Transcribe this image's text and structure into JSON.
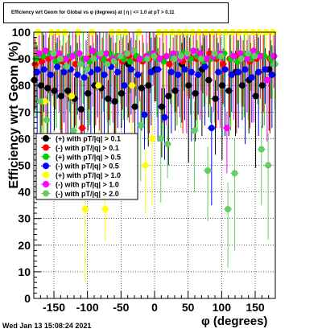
{
  "title": "Efficiency wrt Geom for Global vs φ (degrees) at | η | <= 1.0 at pT > 0.11",
  "timestamp": "Wed Jan 13 15:08:24 2021",
  "chart_data": {
    "type": "scatter",
    "title": "Efficiency wrt Geom for Global vs φ (degrees) at | η | <= 1.0 at pT > 0.11",
    "xlabel": "φ (degrees)",
    "ylabel": "Efficiency wrt Geom (%)",
    "xlim": [
      -180,
      180
    ],
    "ylim": [
      0,
      100
    ],
    "x_ticks": [
      -150,
      -100,
      -50,
      0,
      50,
      100,
      150
    ],
    "y_ticks": [
      0,
      10,
      20,
      30,
      40,
      50,
      60,
      70,
      80,
      90,
      100
    ],
    "grid": true,
    "legend_position": "center-left",
    "series": [
      {
        "name": "(+) with pT/|q| > 0.1",
        "color": "#000000",
        "x": [
          -175,
          -165,
          -155,
          -145,
          -135,
          -125,
          -115,
          -105,
          -95,
          -85,
          -75,
          -65,
          -55,
          -45,
          -35,
          -25,
          -15,
          -5,
          5,
          15,
          25,
          35,
          45,
          55,
          65,
          75,
          85,
          95,
          105,
          115,
          125,
          135,
          145,
          155,
          165,
          175
        ],
        "y": [
          82,
          80,
          79,
          78,
          76,
          78,
          75,
          71,
          77,
          80,
          79,
          75,
          74,
          77,
          88,
          72,
          79,
          80,
          86,
          72,
          76,
          78,
          88,
          80,
          77,
          86,
          82,
          75,
          80,
          78,
          85,
          80,
          82,
          76,
          80,
          86
        ]
      },
      {
        "name": "(-) with pT/|q| > 0.1",
        "color": "#ff0000",
        "x": [
          -175,
          -165,
          -155,
          -145,
          -135,
          -125,
          -115,
          -105,
          -95,
          -85,
          -75,
          -65,
          -55,
          -45,
          -35,
          -25,
          -15,
          -5,
          5,
          15,
          25,
          35,
          45,
          55,
          65,
          75,
          85,
          95,
          105,
          115,
          125,
          135,
          145,
          155,
          165,
          175
        ],
        "y": [
          88,
          89,
          90,
          91,
          89,
          90,
          88,
          64,
          90,
          91,
          90,
          89,
          90,
          89,
          91,
          90,
          89,
          90,
          91,
          90,
          88,
          90,
          89,
          91,
          90,
          89,
          92,
          90,
          88,
          90,
          91,
          90,
          89,
          90,
          91,
          90
        ]
      },
      {
        "name": "(+) with pT/|q| > 0.5",
        "color": "#00cc00",
        "x": [
          -175,
          -165,
          -155,
          -145,
          -135,
          -125,
          -115,
          -105,
          -95,
          -85,
          -75,
          -65,
          -55,
          -45,
          -35,
          -25,
          -15,
          -5,
          5,
          15,
          25,
          35,
          45,
          55,
          65,
          75,
          85,
          95,
          105,
          115,
          125,
          135,
          145,
          155,
          165,
          175
        ],
        "y": [
          90,
          91,
          92,
          89,
          90,
          91,
          92,
          90,
          89,
          91,
          90,
          92,
          91,
          90,
          89,
          91,
          90,
          92,
          90,
          89,
          91,
          90,
          92,
          90,
          91,
          89,
          90,
          91,
          92,
          90,
          89,
          91,
          90,
          92,
          91,
          90
        ]
      },
      {
        "name": "(-) with pT/|q| > 0.5",
        "color": "#0000ff",
        "x": [
          -175,
          -165,
          -155,
          -145,
          -135,
          -125,
          -115,
          -105,
          -95,
          -85,
          -75,
          -65,
          -55,
          -45,
          -35,
          -25,
          -15,
          -5,
          5,
          15,
          25,
          35,
          45,
          55,
          65,
          75,
          85,
          95,
          105,
          115,
          125,
          135,
          145,
          155,
          165,
          175
        ],
        "y": [
          85,
          86,
          84,
          87,
          85,
          86,
          84,
          83,
          85,
          86,
          84,
          87,
          85,
          80,
          86,
          84,
          69,
          85,
          86,
          68,
          85,
          84,
          86,
          85,
          84,
          87,
          64,
          85,
          86,
          84,
          85,
          86,
          83,
          85,
          86,
          84
        ]
      },
      {
        "name": "(+) with pT/|q| > 1.0",
        "color": "#ffff00",
        "x": [
          -175,
          -165,
          -155,
          -145,
          -135,
          -125,
          -115,
          -105,
          -95,
          -85,
          -75,
          -65,
          -55,
          -45,
          -35,
          -25,
          -15,
          -5,
          5,
          15,
          25,
          35,
          45,
          55,
          65,
          75,
          85,
          95,
          105,
          115,
          125,
          135,
          145,
          155,
          165,
          175
        ],
        "y": [
          100,
          74,
          100,
          100,
          100,
          76,
          100,
          33.5,
          100,
          80,
          33.5,
          100,
          100,
          100,
          80,
          100,
          50,
          60,
          100,
          100,
          100,
          100,
          100,
          100,
          100,
          100,
          100,
          100,
          100,
          100,
          100,
          100,
          100,
          100,
          100,
          100
        ]
      },
      {
        "name": "(-) with pT/|q| > 1.0",
        "color": "#ff00ff",
        "x": [
          -175,
          -165,
          -155,
          -145,
          -135,
          -125,
          -115,
          -105,
          -95,
          -85,
          -75,
          -65,
          -55,
          -45,
          -35,
          -25,
          -15,
          -5,
          5,
          15,
          25,
          35,
          45,
          55,
          65,
          75,
          85,
          95,
          105,
          115,
          125,
          135,
          145,
          155,
          165,
          175
        ],
        "y": [
          92,
          93,
          91,
          92,
          90,
          91,
          92,
          90,
          93,
          91,
          92,
          90,
          91,
          92,
          93,
          90,
          91,
          92,
          90,
          91,
          92,
          90,
          91,
          93,
          92,
          90,
          91,
          92,
          64,
          91,
          92,
          90,
          93,
          91,
          82,
          91
        ]
      },
      {
        "name": "(-) with pT/|q| > 2.0",
        "color": "#66cc66",
        "x": [
          -175,
          -165,
          -155,
          -145,
          -135,
          -125,
          -115,
          -105,
          -95,
          -85,
          -75,
          -65,
          -55,
          -45,
          -35,
          -25,
          -15,
          -5,
          5,
          15,
          25,
          35,
          45,
          55,
          65,
          75,
          85,
          95,
          105,
          115,
          125,
          135,
          145,
          155,
          165,
          175
        ],
        "y": [
          74,
          67,
          92,
          90,
          87,
          63,
          88,
          86,
          90,
          92,
          88,
          89,
          91,
          92,
          93,
          65,
          90,
          91,
          60,
          58,
          90,
          91,
          92,
          63,
          90,
          48,
          92,
          91,
          33.5,
          47,
          90,
          92,
          91,
          56,
          50,
          88
        ]
      }
    ]
  }
}
